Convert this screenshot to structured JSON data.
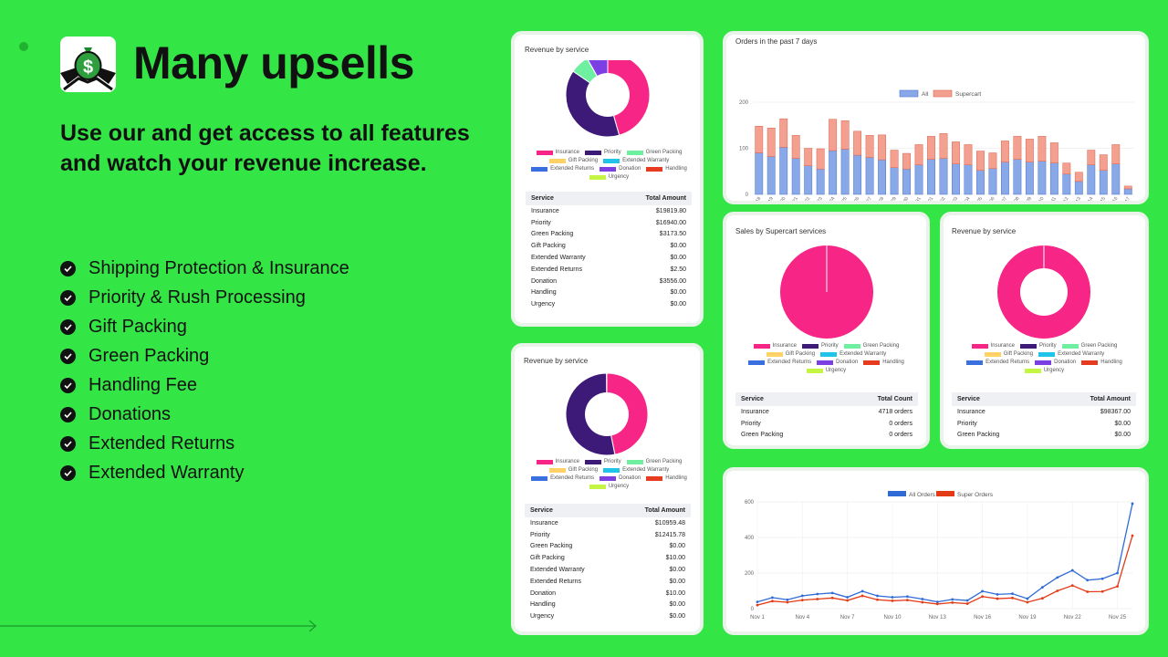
{
  "headline": "Many upsells",
  "subhead": "Use our and get access to all features and watch your revenue increase.",
  "features": [
    "Shipping Protection & Insurance",
    "Priority & Rush Processing",
    "Gift Packing",
    "Green Packing",
    "Handling Fee",
    "Donations",
    "Extended Returns",
    "Extended Warranty"
  ],
  "colors": {
    "background": "#33e646",
    "insurance": "#f72585",
    "priority": "#3d1a78",
    "green_packing": "#6ef0a0",
    "gift_packing": "#ffd166",
    "extended_warranty": "#20c4e8",
    "extended_returns": "#3a6fe0",
    "donation": "#7b3fe4",
    "handling": "#e63b1f",
    "urgency": "#c4f542"
  },
  "legend": {
    "insurance": "Insurance",
    "priority": "Priority",
    "green_packing": "Green Packing",
    "gift_packing": "Gift Packing",
    "extended_warranty": "Extended Warranty",
    "extended_returns": "Extended Returns",
    "donation": "Donation",
    "handling": "Handling",
    "urgency": "Urgency"
  },
  "card1": {
    "title": "Revenue by service",
    "table_header": [
      "Service",
      "Total Amount"
    ],
    "rows": [
      [
        "Insurance",
        "$19819.80"
      ],
      [
        "Priority",
        "$16940.00"
      ],
      [
        "Green Packing",
        "$3173.50"
      ],
      [
        "Gift Packing",
        "$0.00"
      ],
      [
        "Extended Warranty",
        "$0.00"
      ],
      [
        "Extended Returns",
        "$2.50"
      ],
      [
        "Donation",
        "$3556.00"
      ],
      [
        "Handling",
        "$0.00"
      ],
      [
        "Urgency",
        "$0.00"
      ]
    ]
  },
  "card2": {
    "title": "Revenue by service",
    "table_header": [
      "Service",
      "Total Amount"
    ],
    "rows": [
      [
        "Insurance",
        "$10959.48"
      ],
      [
        "Priority",
        "$12415.78"
      ],
      [
        "Green Packing",
        "$0.00"
      ],
      [
        "Gift Packing",
        "$10.00"
      ],
      [
        "Extended Warranty",
        "$0.00"
      ],
      [
        "Extended Returns",
        "$0.00"
      ],
      [
        "Donation",
        "$10.00"
      ],
      [
        "Handling",
        "$0.00"
      ],
      [
        "Urgency",
        "$0.00"
      ]
    ]
  },
  "card3": {
    "title": "Orders in the past 7 days",
    "legend": [
      "All",
      "Supercart"
    ]
  },
  "card4": {
    "title": "Sales by Supercart services",
    "table_header": [
      "Service",
      "Total Count"
    ],
    "rows": [
      [
        "Insurance",
        "4718 orders"
      ],
      [
        "Priority",
        "0 orders"
      ],
      [
        "Green Packing",
        "0 orders"
      ]
    ]
  },
  "card5": {
    "title": "Revenue by service",
    "table_header": [
      "Service",
      "Total Amount"
    ],
    "rows": [
      [
        "Insurance",
        "$98367.00"
      ],
      [
        "Priority",
        "$0.00"
      ],
      [
        "Green Packing",
        "$0.00"
      ]
    ]
  },
  "card6": {
    "legend": [
      "All Orders",
      "Super Orders"
    ]
  },
  "chart_data": [
    {
      "type": "pie",
      "labels": [
        "Insurance",
        "Priority",
        "Green Packing",
        "Gift Packing",
        "Extended Warranty",
        "Extended Returns",
        "Donation",
        "Handling",
        "Urgency"
      ],
      "values": [
        19819.8,
        16940.0,
        3173.5,
        0,
        0,
        2.5,
        3556.0,
        0,
        0
      ],
      "donut": true
    },
    {
      "type": "pie",
      "labels": [
        "Insurance",
        "Priority",
        "Green Packing",
        "Gift Packing",
        "Extended Warranty",
        "Extended Returns",
        "Donation",
        "Handling",
        "Urgency"
      ],
      "values": [
        10959.48,
        12415.78,
        0,
        10,
        0,
        0,
        10,
        0,
        0
      ],
      "donut": true
    },
    {
      "type": "bar",
      "title": "Orders in the past 7 days",
      "stacked": true,
      "categories": [
        "2022-10-18",
        "2022-10-19",
        "2022-10-20",
        "2022-10-21",
        "2022-10-22",
        "2022-10-23",
        "2022-10-24",
        "2022-10-25",
        "2022-10-26",
        "2022-10-27",
        "2022-10-28",
        "2022-10-29",
        "2022-10-30",
        "2022-10-31",
        "2022-11-01",
        "2022-11-02",
        "2022-11-03",
        "2022-11-04",
        "2022-11-05",
        "2022-11-06",
        "2022-11-07",
        "2022-11-08",
        "2022-11-09",
        "2022-11-10",
        "2022-11-11",
        "2022-11-12",
        "2022-11-13",
        "2022-11-14",
        "2022-11-15",
        "2022-11-16",
        "2022-11-17"
      ],
      "series": [
        {
          "name": "All",
          "values": [
            90,
            82,
            102,
            78,
            62,
            55,
            95,
            98,
            85,
            80,
            75,
            58,
            55,
            64,
            76,
            78,
            66,
            64,
            52,
            56,
            70,
            76,
            70,
            72,
            68,
            44,
            28,
            64,
            52,
            66,
            12
          ]
        },
        {
          "name": "Supercart",
          "values": [
            58,
            62,
            62,
            50,
            38,
            44,
            68,
            62,
            52,
            48,
            54,
            38,
            34,
            44,
            50,
            54,
            48,
            44,
            42,
            34,
            46,
            50,
            50,
            54,
            44,
            24,
            20,
            32,
            34,
            42,
            6
          ]
        }
      ],
      "ylim": [
        0,
        200
      ],
      "yticks": [
        0,
        100,
        200
      ]
    },
    {
      "type": "pie",
      "title": "Sales by Supercart services",
      "labels": [
        "Insurance",
        "Priority",
        "Green Packing"
      ],
      "values": [
        4718,
        0,
        0
      ]
    },
    {
      "type": "pie",
      "title": "Revenue by service",
      "labels": [
        "Insurance",
        "Priority",
        "Green Packing"
      ],
      "values": [
        98367,
        0,
        0
      ],
      "donut": true
    },
    {
      "type": "line",
      "x": [
        1,
        2,
        3,
        4,
        5,
        6,
        7,
        8,
        9,
        10,
        11,
        12,
        13,
        14,
        15,
        16,
        17,
        18,
        19,
        20,
        21,
        22,
        23,
        24,
        25,
        26
      ],
      "xticks": [
        "Nov 1",
        "Nov 4",
        "Nov 7",
        "Nov 10",
        "Nov 13",
        "Nov 16",
        "Nov 19",
        "Nov 22",
        "Nov 25"
      ],
      "series": [
        {
          "name": "All Orders",
          "values": [
            38,
            62,
            50,
            72,
            82,
            88,
            64,
            98,
            72,
            64,
            68,
            54,
            38,
            52,
            46,
            98,
            80,
            84,
            56,
            120,
            175,
            215,
            160,
            168,
            200,
            590
          ]
        },
        {
          "name": "Super Orders",
          "values": [
            20,
            42,
            36,
            48,
            54,
            60,
            46,
            72,
            50,
            44,
            48,
            36,
            26,
            34,
            28,
            68,
            56,
            60,
            36,
            58,
            100,
            130,
            95,
            96,
            125,
            410
          ]
        }
      ],
      "ylim": [
        0,
        600
      ],
      "yticks": [
        0,
        200,
        400,
        600
      ]
    }
  ]
}
